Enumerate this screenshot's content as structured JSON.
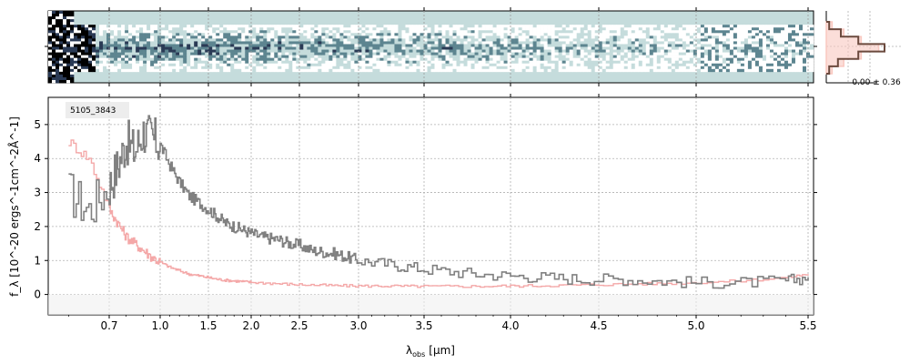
{
  "chart_data": [
    {
      "type": "heatmap",
      "panel": "2D spectrum",
      "colormap": [
        "#ffffff",
        "#c5dcdc",
        "#5d8590",
        "#2a3a55",
        "#000000"
      ],
      "background_color": "#c5dcdc",
      "x_range": [
        0.55,
        5.55
      ],
      "x_scale": "reciprocal-like",
      "grid": true
    },
    {
      "type": "area",
      "panel": "spatial profile",
      "annotation": "0.00 ± 0.36",
      "series": [
        {
          "name": "",
          "color": "#6b4a3e",
          "values": [
            0.05,
            0.25,
            0.55,
            1.0,
            0.55,
            0.2,
            0.05
          ]
        },
        {
          "name": "",
          "color": "#f9c8c0",
          "values": [
            0.1,
            0.3,
            0.6,
            0.9,
            0.6,
            0.3,
            0.1
          ]
        }
      ]
    },
    {
      "type": "line",
      "panel": "1D spectrum",
      "label": "5105_3843",
      "xlabel_main": "λ",
      "xlabel_sub": "obs",
      "xlabel_unit": "[μm]",
      "ylabel": "f_λ [10^-20 ergs^-1cm^-2Å^-1]",
      "xlim": [
        0.55,
        5.55
      ],
      "ylim": [
        -0.6,
        5.8
      ],
      "x_ticks": [
        0.7,
        1.0,
        1.5,
        2.0,
        2.5,
        3.0,
        3.5,
        4.0,
        4.5,
        5.0,
        5.5
      ],
      "x_tick_labels": [
        "0.7",
        "1.0",
        "1.5",
        "2.0",
        "2.5",
        "3.0",
        "3.5",
        "4.0",
        "4.5",
        "5.0",
        "5.5"
      ],
      "y_ticks": [
        0,
        1,
        2,
        3,
        4,
        5
      ],
      "y_tick_labels": [
        "0",
        "1",
        "2",
        "3",
        "4",
        "5"
      ],
      "grid": true,
      "series": [
        {
          "name": "",
          "color": "#808080",
          "x": [
            0.6,
            0.65,
            0.7,
            0.75,
            0.8,
            0.85,
            0.9,
            0.95,
            1.0,
            1.1,
            1.2,
            1.3,
            1.4,
            1.5,
            1.6,
            1.7,
            1.8,
            1.9,
            2.0,
            2.1,
            2.2,
            2.3,
            2.4,
            2.5,
            2.6,
            2.7,
            2.8,
            2.9,
            3.0,
            3.2,
            3.4,
            3.6,
            3.8,
            4.0,
            4.2,
            4.4,
            4.6,
            4.8,
            5.0,
            5.2,
            5.4,
            5.5
          ],
          "values": [
            3.0,
            2.5,
            3.2,
            3.8,
            4.5,
            4.2,
            4.8,
            4.6,
            4.4,
            3.8,
            3.3,
            2.9,
            2.7,
            2.5,
            2.3,
            2.1,
            2.0,
            1.9,
            1.8,
            1.7,
            1.65,
            1.6,
            1.5,
            1.45,
            1.3,
            1.25,
            1.2,
            1.1,
            1.0,
            0.9,
            0.8,
            0.7,
            0.6,
            0.55,
            0.5,
            0.45,
            0.45,
            0.4,
            0.35,
            0.35,
            0.4,
            0.5
          ]
        },
        {
          "name": "",
          "color": "#f4a8a8",
          "x": [
            0.6,
            0.65,
            0.7,
            0.75,
            0.8,
            0.85,
            0.9,
            0.95,
            1.0,
            1.1,
            1.2,
            1.3,
            1.4,
            1.5,
            1.6,
            1.7,
            1.8,
            1.9,
            2.0,
            2.2,
            2.4,
            2.6,
            2.8,
            3.0,
            3.2,
            3.4,
            3.6,
            3.8,
            4.0,
            4.2,
            4.4,
            4.6,
            4.8,
            5.0,
            5.2,
            5.4,
            5.5
          ],
          "values": [
            4.5,
            4.0,
            2.5,
            2.1,
            1.7,
            1.5,
            1.3,
            1.1,
            0.95,
            0.8,
            0.7,
            0.6,
            0.55,
            0.5,
            0.45,
            0.42,
            0.4,
            0.38,
            0.36,
            0.33,
            0.3,
            0.28,
            0.26,
            0.25,
            0.25,
            0.24,
            0.24,
            0.24,
            0.25,
            0.26,
            0.28,
            0.3,
            0.32,
            0.35,
            0.4,
            0.5,
            0.6
          ]
        }
      ]
    }
  ]
}
